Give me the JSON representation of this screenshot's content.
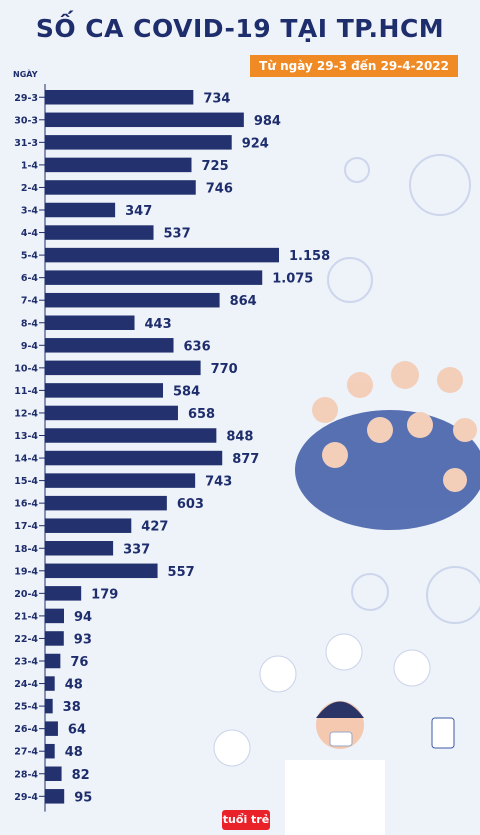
{
  "header": {
    "title": "SỐ CA COVID-19 TẠI TP.HCM",
    "subtitle": "Từ ngày 29-3 đến 29-4-2022"
  },
  "logo_text": "tuổi trẻ",
  "colors": {
    "bar": "#23326e",
    "text": "#1e2d6b",
    "accent": "#ef8a25",
    "background": "#eef2f9",
    "illustration": "#c9d3ea"
  },
  "chart_data": {
    "type": "bar",
    "orientation": "horizontal",
    "title": "SỐ CA COVID-19 TẠI TP.HCM",
    "subtitle": "Từ ngày 29-3 đến 29-4-2022",
    "ylabel": "NGÀY",
    "xlabel": "",
    "xlim": [
      0,
      1200
    ],
    "grid": false,
    "categories": [
      "29-3",
      "30-3",
      "31-3",
      "1-4",
      "2-4",
      "3-4",
      "4-4",
      "5-4",
      "6-4",
      "7-4",
      "8-4",
      "9-4",
      "10-4",
      "11-4",
      "12-4",
      "13-4",
      "14-4",
      "15-4",
      "16-4",
      "17-4",
      "18-4",
      "19-4",
      "20-4",
      "21-4",
      "22-4",
      "23-4",
      "24-4",
      "25-4",
      "26-4",
      "27-4",
      "28-4",
      "29-4"
    ],
    "values": [
      734,
      984,
      924,
      725,
      746,
      347,
      537,
      1158,
      1075,
      864,
      443,
      636,
      770,
      584,
      658,
      848,
      877,
      743,
      603,
      427,
      337,
      557,
      179,
      94,
      93,
      76,
      48,
      38,
      64,
      48,
      82,
      95
    ],
    "value_labels": [
      "734",
      "984",
      "924",
      "725",
      "746",
      "347",
      "537",
      "1.158",
      "1.075",
      "864",
      "443",
      "636",
      "770",
      "584",
      "658",
      "848",
      "877",
      "743",
      "603",
      "427",
      "337",
      "557",
      "179",
      "94",
      "93",
      "76",
      "48",
      "38",
      "64",
      "48",
      "82",
      "95"
    ]
  }
}
